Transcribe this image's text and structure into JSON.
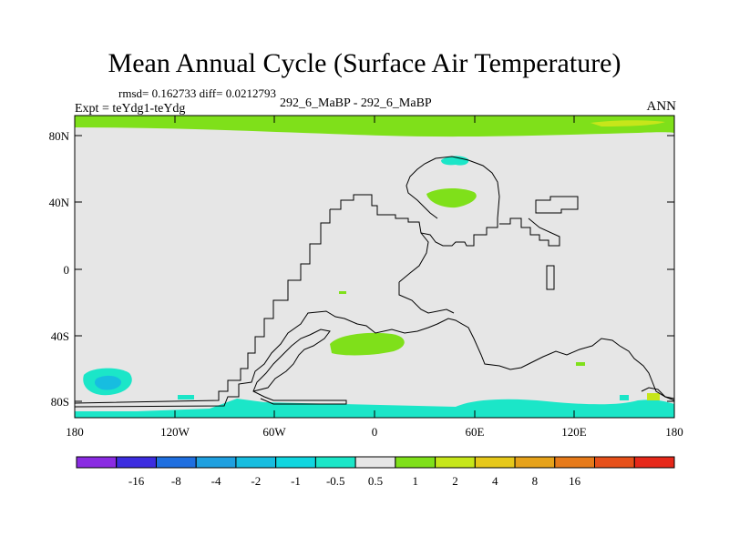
{
  "title": "Mean Annual Cycle (Surface Air Temperature)",
  "stats": {
    "rmsd_label": "rmsd=",
    "rmsd": "0.162733",
    "diff_label": "diff=",
    "diff": "0.0212793"
  },
  "expt_label": "Expt = teYdg1-teYdg",
  "case_label": "292_6_MaBP - 292_6_MaBP",
  "season": "ANN",
  "axes": {
    "y_ticks": [
      "80N",
      "40N",
      "0",
      "40S",
      "80S"
    ],
    "x_ticks": [
      "180",
      "120W",
      "60W",
      "0",
      "60E",
      "120E",
      "180"
    ]
  },
  "colorbar": {
    "colors": [
      "#8a2be2",
      "#3c2de0",
      "#1f6fe0",
      "#1fa0e0",
      "#17bde0",
      "#10d6e0",
      "#1be6c8",
      "#e6e6e6",
      "#7fe01a",
      "#c6e61a",
      "#e6c81a",
      "#e6a21a",
      "#e67a1a",
      "#e6501a",
      "#e6281a"
    ],
    "labels": [
      "-16",
      "-8",
      "-4",
      "-2",
      "-1",
      "-0.5",
      "0.5",
      "1",
      "2",
      "4",
      "8",
      "16"
    ]
  },
  "colors": {
    "background": "#e6e6e6",
    "positive_small": "#7fe01a",
    "positive_mid": "#c6e61a",
    "negative_small": "#1be6c8",
    "negative_mid": "#17bde0"
  }
}
